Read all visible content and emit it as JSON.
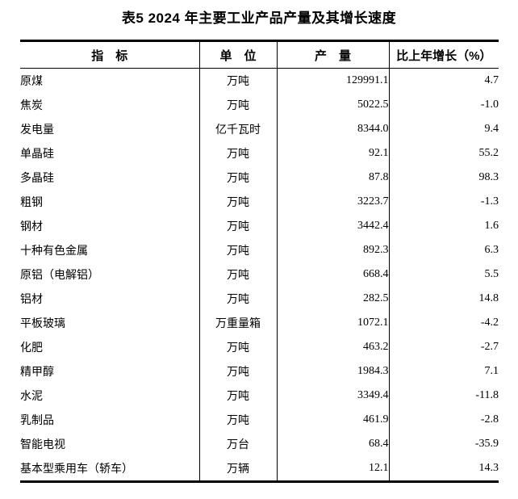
{
  "page": {
    "background": "#ffffff",
    "text_color": "#000000",
    "rule_color": "#000000"
  },
  "title": "表5 2024 年主要工业产品产量及其增长速度",
  "table": {
    "headers": [
      "指　标",
      "单　位",
      "产　量",
      "比上年增长（%）"
    ],
    "rows": [
      {
        "indicator": "原煤",
        "unit": "万吨",
        "output": "129991.1",
        "growth": "4.7"
      },
      {
        "indicator": "焦炭",
        "unit": "万吨",
        "output": "5022.5",
        "growth": "-1.0"
      },
      {
        "indicator": "发电量",
        "unit": "亿千瓦时",
        "output": "8344.0",
        "growth": "9.4"
      },
      {
        "indicator": "单晶硅",
        "unit": "万吨",
        "output": "92.1",
        "growth": "55.2"
      },
      {
        "indicator": "多晶硅",
        "unit": "万吨",
        "output": "87.8",
        "growth": "98.3"
      },
      {
        "indicator": "粗钢",
        "unit": "万吨",
        "output": "3223.7",
        "growth": "-1.3"
      },
      {
        "indicator": "钢材",
        "unit": "万吨",
        "output": "3442.4",
        "growth": "1.6"
      },
      {
        "indicator": "十种有色金属",
        "unit": "万吨",
        "output": "892.3",
        "growth": "6.3"
      },
      {
        "indicator": "原铝（电解铝）",
        "unit": "万吨",
        "output": "668.4",
        "growth": "5.5"
      },
      {
        "indicator": "铝材",
        "unit": "万吨",
        "output": "282.5",
        "growth": "14.8"
      },
      {
        "indicator": "平板玻璃",
        "unit": "万重量箱",
        "output": "1072.1",
        "growth": "-4.2"
      },
      {
        "indicator": "化肥",
        "unit": "万吨",
        "output": "463.2",
        "growth": "-2.7"
      },
      {
        "indicator": "精甲醇",
        "unit": "万吨",
        "output": "1984.3",
        "growth": "7.1"
      },
      {
        "indicator": "水泥",
        "unit": "万吨",
        "output": "3349.4",
        "growth": "-11.8"
      },
      {
        "indicator": "乳制品",
        "unit": "万吨",
        "output": "461.9",
        "growth": "-2.8"
      },
      {
        "indicator": "智能电视",
        "unit": "万台",
        "output": "68.4",
        "growth": "-35.9"
      },
      {
        "indicator": "基本型乘用车（轿车）",
        "unit": "万辆",
        "output": "12.1",
        "growth": "14.3"
      }
    ]
  }
}
